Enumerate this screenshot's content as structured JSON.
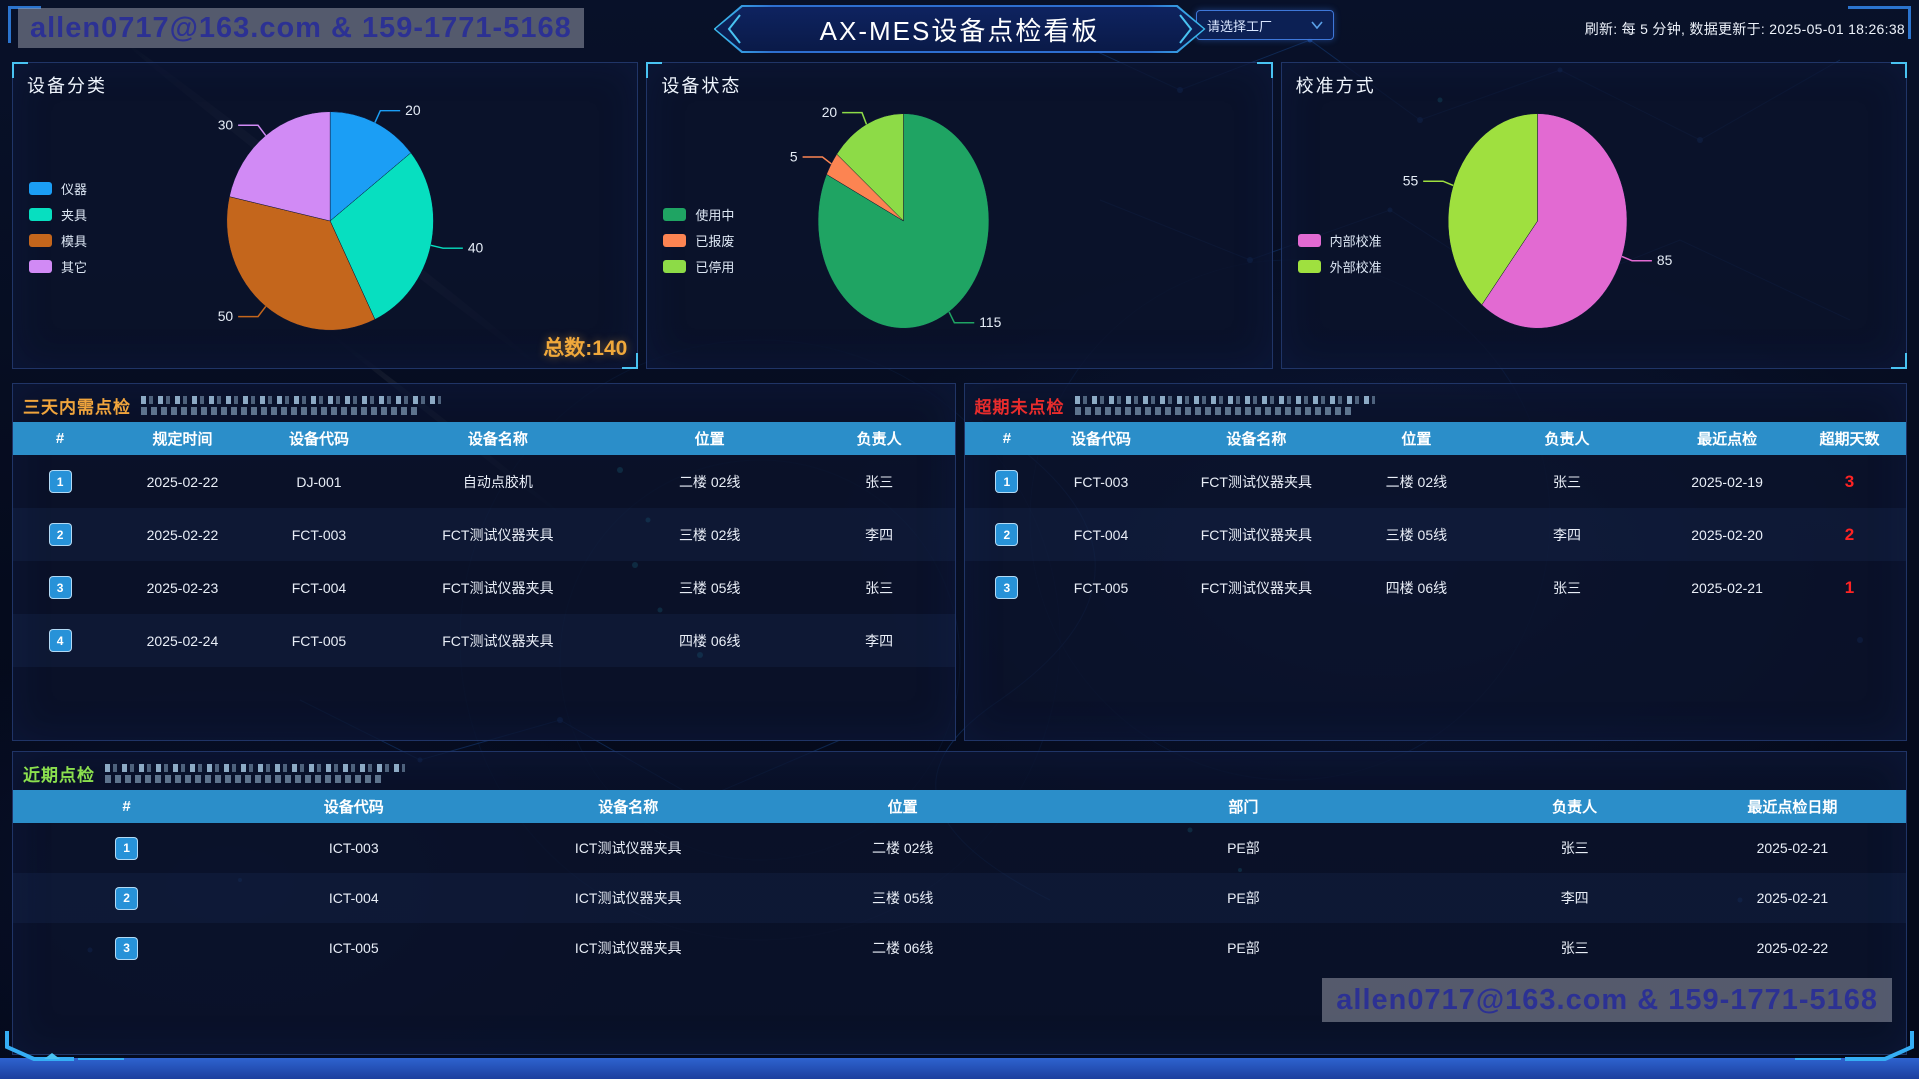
{
  "header": {
    "watermark": "allen0717@163.com & 159-1771-5168",
    "title": "AX-MES设备点检看板",
    "factory_select_placeholder": "请选择工厂",
    "refresh_text": "刷新: 每 5 分钟, 数据更新于: 2025-05-01 18:26:38"
  },
  "chart_data": [
    {
      "type": "pie",
      "title": "设备分类",
      "legend_position": "bottom-left",
      "series": [
        {
          "name": "仪器",
          "value": 20,
          "color": "#1b9ef5"
        },
        {
          "name": "夹具",
          "value": 40,
          "color": "#07dfc0"
        },
        {
          "name": "模具",
          "value": 50,
          "color": "#c4661c"
        },
        {
          "name": "其它",
          "value": 30,
          "color": "#d18af5"
        }
      ],
      "total_label": "总数:140",
      "total_color": "#f0a83b"
    },
    {
      "type": "pie",
      "title": "设备状态",
      "legend_position": "bottom-left",
      "series": [
        {
          "name": "使用中",
          "value": 115,
          "color": "#1fa463"
        },
        {
          "name": "已报废",
          "value": 5,
          "color": "#fc8452"
        },
        {
          "name": "已停用",
          "value": 20,
          "color": "#8ddb47"
        }
      ]
    },
    {
      "type": "pie",
      "title": "校准方式",
      "legend_position": "bottom-left",
      "series": [
        {
          "name": "内部校准",
          "value": 85,
          "color": "#e26ad2"
        },
        {
          "name": "外部校准",
          "value": 55,
          "color": "#9fe03f"
        }
      ]
    }
  ],
  "tables": {
    "due_soon": {
      "title": "三天内需点检",
      "title_color": "#f0a43c",
      "columns": [
        "#",
        "规定时间",
        "设备代码",
        "设备名称",
        "位置",
        "负责人"
      ],
      "rows": [
        [
          "1",
          "2025-02-22",
          "DJ-001",
          "自动点胶机",
          "二楼 02线",
          "张三"
        ],
        [
          "2",
          "2025-02-22",
          "FCT-003",
          "FCT测试仪器夹具",
          "三楼 02线",
          "李四"
        ],
        [
          "3",
          "2025-02-23",
          "FCT-004",
          "FCT测试仪器夹具",
          "三楼 05线",
          "张三"
        ],
        [
          "4",
          "2025-02-24",
          "FCT-005",
          "FCT测试仪器夹具",
          "四楼 06线",
          "李四"
        ]
      ]
    },
    "overdue": {
      "title": "超期未点检",
      "title_color": "#e82c2c",
      "columns": [
        "#",
        "设备代码",
        "设备名称",
        "位置",
        "负责人",
        "最近点检",
        "超期天数"
      ],
      "rows": [
        [
          "1",
          "FCT-003",
          "FCT测试仪器夹具",
          "二楼 02线",
          "张三",
          "2025-02-19",
          "3"
        ],
        [
          "2",
          "FCT-004",
          "FCT测试仪器夹具",
          "三楼 05线",
          "李四",
          "2025-02-20",
          "2"
        ],
        [
          "3",
          "FCT-005",
          "FCT测试仪器夹具",
          "四楼 06线",
          "张三",
          "2025-02-21",
          "1"
        ]
      ]
    },
    "recent": {
      "title": "近期点检",
      "title_color": "#8be04e",
      "columns": [
        "#",
        "设备代码",
        "设备名称",
        "位置",
        "部门",
        "负责人",
        "最近点检日期"
      ],
      "rows": [
        [
          "1",
          "ICT-003",
          "ICT测试仪器夹具",
          "二楼 02线",
          "PE部",
          "张三",
          "2025-02-21"
        ],
        [
          "2",
          "ICT-004",
          "ICT测试仪器夹具",
          "三楼 05线",
          "PE部",
          "李四",
          "2025-02-21"
        ],
        [
          "3",
          "ICT-005",
          "ICT测试仪器夹具",
          "二楼 06线",
          "PE部",
          "张三",
          "2025-02-22"
        ]
      ]
    }
  },
  "footer": {
    "watermark": "allen0717@163.com & 159-1771-5168"
  }
}
